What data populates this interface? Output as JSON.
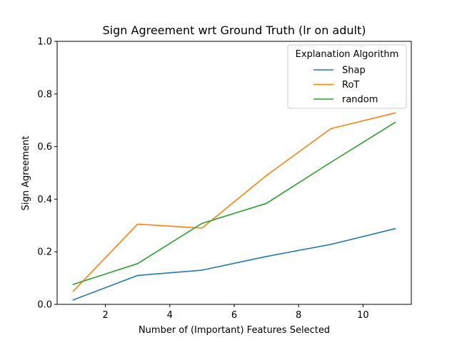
{
  "chart_data": {
    "type": "line",
    "title": "Sign Agreement wrt Ground Truth (lr on adult)",
    "xlabel": "Number of (Important) Features Selected",
    "ylabel": "Sign Agreement",
    "xlim": [
      0.5,
      11.5
    ],
    "ylim": [
      0.0,
      1.0
    ],
    "xticks": [
      2,
      4,
      6,
      8,
      10
    ],
    "xtick_labels": [
      "2",
      "4",
      "6",
      "8",
      "10"
    ],
    "yticks": [
      0.0,
      0.2,
      0.4,
      0.6,
      0.8,
      1.0
    ],
    "ytick_labels": [
      "0.0",
      "0.2",
      "0.4",
      "0.6",
      "0.8",
      "1.0"
    ],
    "x": [
      1,
      3,
      5,
      7,
      9,
      11
    ],
    "series": [
      {
        "name": "Shap",
        "color": "#1f77b4",
        "values": [
          0.017,
          0.11,
          0.13,
          0.182,
          0.228,
          0.288
        ]
      },
      {
        "name": "RoT",
        "color": "#ff7f0e",
        "values": [
          0.05,
          0.305,
          0.29,
          0.49,
          0.668,
          0.728
        ]
      },
      {
        "name": "random",
        "color": "#2ca02c",
        "values": [
          0.076,
          0.155,
          0.308,
          0.384,
          0.54,
          0.692
        ]
      }
    ],
    "legend": {
      "title": "Explanation Algorithm",
      "position": "top-right"
    },
    "grid": false
  }
}
